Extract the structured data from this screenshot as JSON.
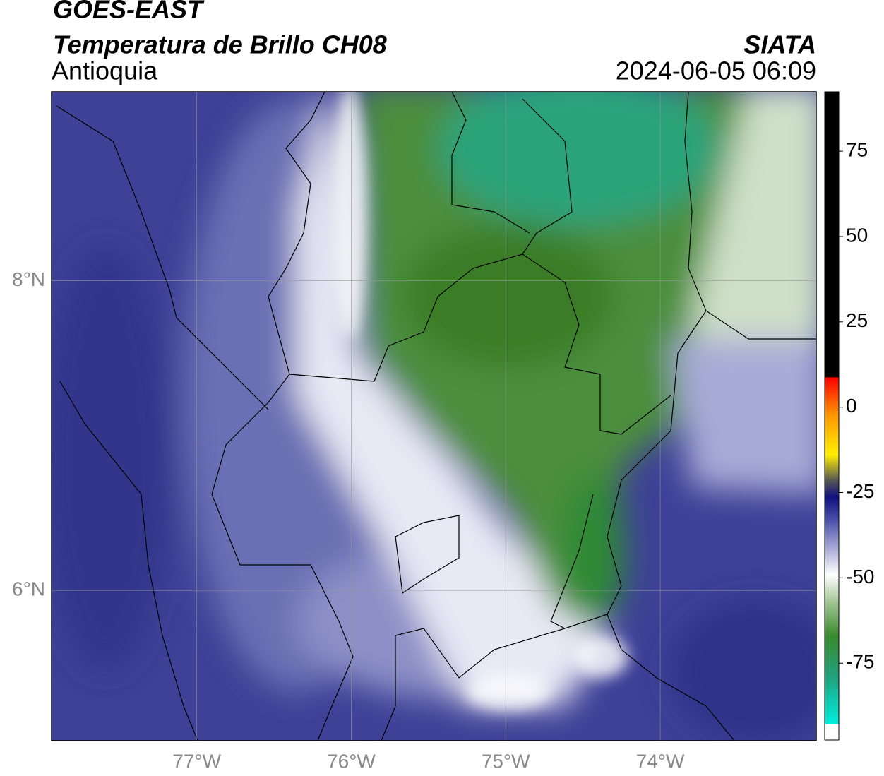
{
  "header": {
    "title": "GOES-EAST",
    "subtitle": "Temperatura de Brillo CH08",
    "region": "Antioquia",
    "source": "SIATA",
    "timestamp": "2024-06-05 06:09"
  },
  "map": {
    "lonlim": [
      -77.94,
      -72.99
    ],
    "latlim": [
      5.03,
      9.22
    ],
    "lon_ticks": [
      {
        "value": -77,
        "label": "77°W"
      },
      {
        "value": -76,
        "label": "76°W"
      },
      {
        "value": -75,
        "label": "75°W"
      },
      {
        "value": -74,
        "label": "74°W"
      }
    ],
    "lat_ticks": [
      {
        "value": 8,
        "label": "8°N"
      },
      {
        "value": 6,
        "label": "6°N"
      }
    ]
  },
  "colorbar": {
    "lim": [
      -97.5,
      92.4
    ],
    "ticks": [
      75,
      50,
      25,
      0,
      -25,
      -50,
      -75
    ]
  }
}
